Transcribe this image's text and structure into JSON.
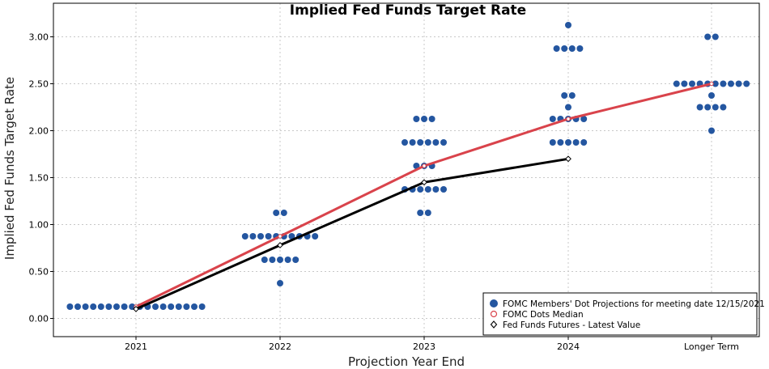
{
  "chart_data": {
    "type": "scatter",
    "title": "Implied Fed Funds Target Rate",
    "xlabel": "Projection Year End",
    "ylabel": "Implied Fed Funds Target Rate",
    "categories": [
      "2021",
      "2022",
      "2023",
      "2024",
      "Longer Term"
    ],
    "ylim": [
      -0.2,
      3.4
    ],
    "yticks": [
      "0.00",
      "0.50",
      "1.00",
      "1.50",
      "2.00",
      "2.50",
      "3.00"
    ],
    "grid": true,
    "legend_position": "bottom-right",
    "series": [
      {
        "name": "FOMC Members' Dot Projections for meeting date 12/15/2021",
        "kind": "dots",
        "color": "#2456a0",
        "points": [
          {
            "x": "2021",
            "rows": [
              {
                "y": 0.125,
                "count": 18
              }
            ]
          },
          {
            "x": "2022",
            "rows": [
              {
                "y": 1.125,
                "count": 2
              },
              {
                "y": 0.875,
                "count": 10
              },
              {
                "y": 0.625,
                "count": 5
              },
              {
                "y": 0.375,
                "count": 1
              }
            ]
          },
          {
            "x": "2023",
            "rows": [
              {
                "y": 2.125,
                "count": 3
              },
              {
                "y": 1.875,
                "count": 6
              },
              {
                "y": 1.625,
                "count": 3
              },
              {
                "y": 1.375,
                "count": 6
              },
              {
                "y": 1.125,
                "count": 2
              }
            ]
          },
          {
            "x": "2024",
            "rows": [
              {
                "y": 3.125,
                "count": 1
              },
              {
                "y": 2.875,
                "count": 4
              },
              {
                "y": 2.375,
                "count": 2
              },
              {
                "y": 2.25,
                "count": 1
              },
              {
                "y": 2.125,
                "count": 5
              },
              {
                "y": 1.875,
                "count": 5
              }
            ]
          },
          {
            "x": "Longer Term",
            "rows": [
              {
                "y": 3.0,
                "count": 2
              },
              {
                "y": 2.5,
                "count": 10
              },
              {
                "y": 2.375,
                "count": 1
              },
              {
                "y": 2.25,
                "count": 4
              },
              {
                "y": 2.0,
                "count": 1
              }
            ]
          }
        ]
      },
      {
        "name": "FOMC Dots Median",
        "kind": "line",
        "color": "#d9434b",
        "x": [
          "2021",
          "2022",
          "2023",
          "2024",
          "Longer Term"
        ],
        "values": [
          0.125,
          0.875,
          1.625,
          2.125,
          2.5
        ]
      },
      {
        "name": "Fed Funds Futures - Latest Value",
        "kind": "line-diamond",
        "color": "#000000",
        "x": [
          "2021",
          "2022",
          "2023",
          "2024"
        ],
        "values": [
          0.1,
          0.78,
          1.45,
          1.7
        ]
      }
    ]
  }
}
